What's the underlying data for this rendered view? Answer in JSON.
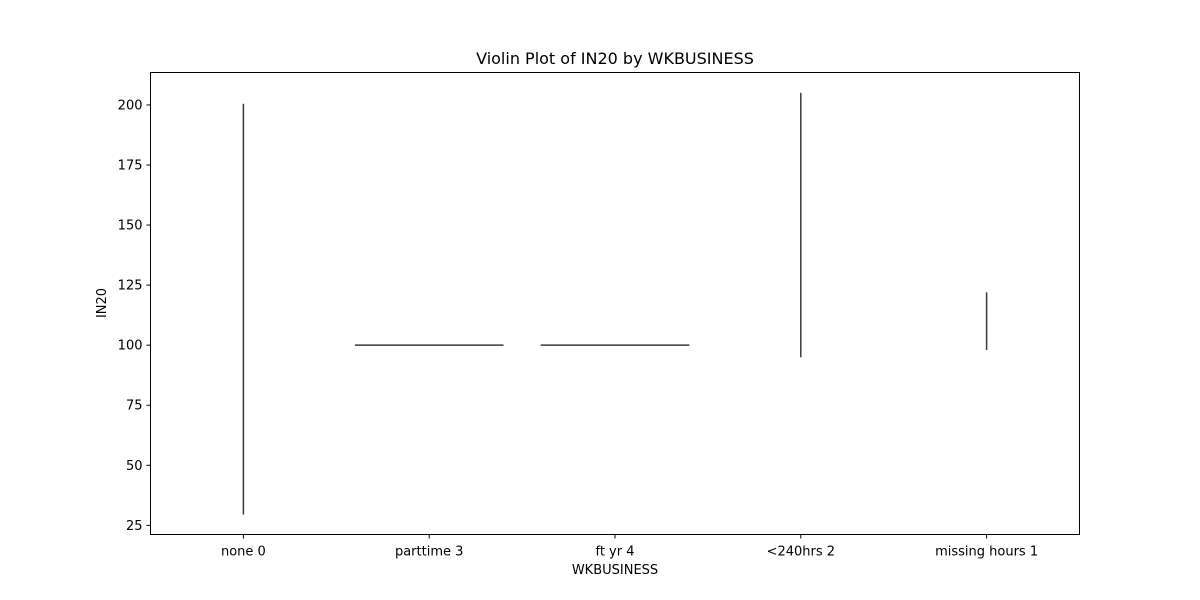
{
  "chart_data": {
    "type": "violin",
    "title": "Violin Plot of IN20 by WKBUSINESS",
    "xlabel": "WKBUSINESS",
    "ylabel": "IN20",
    "ylim": [
      21.2,
      213.5
    ],
    "yticks": [
      25,
      50,
      75,
      100,
      125,
      150,
      175,
      200
    ],
    "grid": false,
    "categories": [
      "none 0",
      "parttime 3",
      "ft yr 4",
      "<240hrs 2",
      "missing hours 1"
    ],
    "violins": [
      {
        "category": "none 0",
        "shape": "vertical",
        "min": 29.5,
        "max": 200.5
      },
      {
        "category": "parttime 3",
        "shape": "horizontal",
        "value": 100
      },
      {
        "category": "ft yr 4",
        "shape": "horizontal",
        "value": 100
      },
      {
        "category": "<240hrs 2",
        "shape": "vertical",
        "min": 95,
        "max": 205
      },
      {
        "category": "missing hours 1",
        "shape": "vertical",
        "min": 98,
        "max": 122
      }
    ]
  }
}
